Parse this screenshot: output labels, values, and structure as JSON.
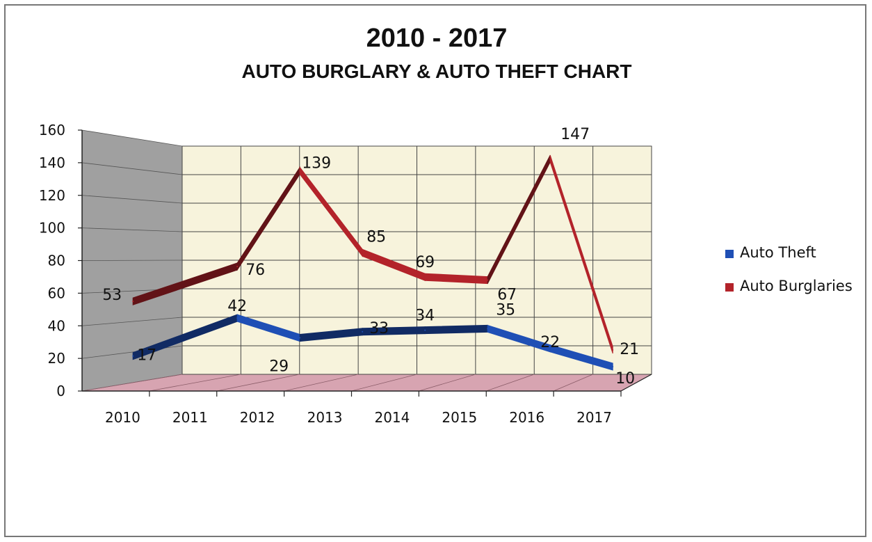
{
  "chart_data": {
    "type": "line",
    "title": "2010 - 2017",
    "subtitle": "AUTO BURGLARY & AUTO THEFT CHART",
    "categories": [
      "2010",
      "2011",
      "2012",
      "2013",
      "2014",
      "2015",
      "2016",
      "2017"
    ],
    "ylim": [
      0,
      160
    ],
    "yticks": [
      0,
      20,
      40,
      60,
      80,
      100,
      120,
      140,
      160
    ],
    "grid": true,
    "legend_position": "right",
    "series": [
      {
        "name": "Auto Theft",
        "color": "#1f4fb5",
        "values": [
          17,
          42,
          29,
          33,
          34,
          35,
          22,
          10
        ],
        "labels": [
          "17",
          "42",
          "29",
          "33",
          "34",
          "35",
          "22",
          "10"
        ]
      },
      {
        "name": "Auto Burglaries",
        "color": "#b3232a",
        "values": [
          53,
          76,
          139,
          85,
          69,
          67,
          147,
          21
        ],
        "labels": [
          "53",
          "76",
          "139",
          "85",
          "69",
          "67",
          "147",
          "21"
        ]
      }
    ]
  }
}
